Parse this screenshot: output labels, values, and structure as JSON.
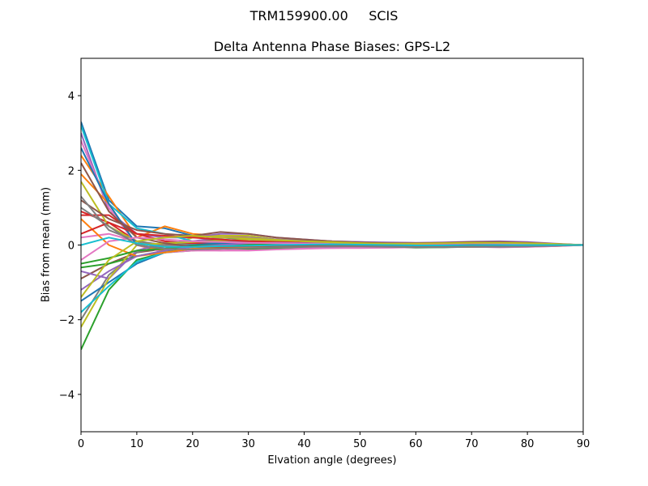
{
  "figure": {
    "suptitle": "TRM159900.00     SCIS",
    "title": "Delta Antenna Phase Biases: GPS-L2",
    "xlabel": "Elvation angle (degrees)",
    "ylabel": "Bias from mean (mm)"
  },
  "chart_data": {
    "type": "line",
    "title": "Delta Antenna Phase Biases: GPS-L2",
    "suptitle": "TRM159900.00     SCIS",
    "xlabel": "Elvation angle (degrees)",
    "ylabel": "Bias from mean (mm)",
    "xlim": [
      0,
      90
    ],
    "ylim": [
      -5,
      5
    ],
    "xticks": [
      0,
      10,
      20,
      30,
      40,
      50,
      60,
      70,
      80,
      90
    ],
    "yticks": [
      -4,
      -2,
      0,
      2,
      4
    ],
    "grid": false,
    "legend": false,
    "x": [
      0,
      5,
      10,
      15,
      20,
      25,
      30,
      35,
      40,
      45,
      50,
      55,
      60,
      65,
      70,
      75,
      80,
      85,
      90
    ],
    "color_cycle": [
      "#1f77b4",
      "#ff7f0e",
      "#2ca02c",
      "#d62728",
      "#9467bd",
      "#8c564b",
      "#e377c2",
      "#7f7f7f",
      "#bcbd22",
      "#17becf"
    ],
    "series": [
      {
        "name": "s1",
        "values": [
          3.3,
          1.2,
          0.5,
          0.45,
          0.25,
          0.2,
          0.15,
          0.1,
          0.08,
          0.05,
          0.05,
          0.03,
          0.05,
          0.06,
          0.08,
          0.08,
          0.06,
          0.03,
          0.0
        ]
      },
      {
        "name": "s2",
        "values": [
          2.4,
          1.3,
          0.2,
          0.5,
          0.3,
          0.25,
          0.2,
          0.15,
          0.1,
          0.06,
          0.04,
          0.02,
          0.03,
          0.05,
          0.06,
          0.07,
          0.05,
          0.02,
          0.0
        ]
      },
      {
        "name": "s3",
        "values": [
          -2.8,
          -1.2,
          -0.4,
          -0.2,
          -0.15,
          -0.1,
          -0.08,
          -0.05,
          -0.03,
          -0.02,
          -0.03,
          -0.04,
          -0.05,
          -0.06,
          -0.05,
          -0.04,
          -0.03,
          -0.02,
          0.0
        ]
      },
      {
        "name": "s4",
        "values": [
          0.9,
          0.6,
          0.1,
          -0.1,
          -0.05,
          0.0,
          0.02,
          0.03,
          0.05,
          0.04,
          0.02,
          0.0,
          -0.02,
          -0.03,
          -0.02,
          -0.01,
          0.0,
          0.0,
          0.0
        ]
      },
      {
        "name": "s5",
        "values": [
          3.0,
          0.9,
          0.3,
          0.2,
          0.2,
          0.3,
          0.3,
          0.2,
          0.15,
          0.1,
          0.08,
          0.05,
          0.04,
          0.05,
          0.06,
          0.05,
          0.04,
          0.02,
          0.0
        ]
      },
      {
        "name": "s6",
        "values": [
          -0.9,
          -0.5,
          -0.2,
          -0.1,
          0.1,
          0.15,
          0.1,
          0.08,
          0.05,
          0.03,
          0.02,
          0.0,
          -0.01,
          0.0,
          0.02,
          0.03,
          0.02,
          0.01,
          0.0
        ]
      },
      {
        "name": "s7",
        "values": [
          2.8,
          1.0,
          0.0,
          -0.2,
          -0.15,
          -0.15,
          -0.12,
          -0.1,
          -0.08,
          -0.08,
          -0.08,
          -0.07,
          -0.06,
          -0.05,
          -0.05,
          -0.06,
          -0.05,
          -0.03,
          0.0
        ]
      },
      {
        "name": "s8",
        "values": [
          -2.0,
          -0.8,
          -0.2,
          0.0,
          0.05,
          0.1,
          0.1,
          0.1,
          0.08,
          0.06,
          0.05,
          0.03,
          0.02,
          0.03,
          0.05,
          0.05,
          0.03,
          0.02,
          0.0
        ]
      },
      {
        "name": "s9",
        "values": [
          1.7,
          0.5,
          0.1,
          -0.05,
          0.2,
          0.25,
          0.25,
          0.15,
          0.1,
          0.06,
          0.03,
          0.02,
          0.0,
          0.01,
          0.02,
          0.02,
          0.01,
          0.0,
          0.0
        ]
      },
      {
        "name": "s10",
        "values": [
          3.2,
          1.1,
          0.45,
          0.3,
          0.1,
          0.05,
          0.05,
          0.06,
          0.05,
          0.04,
          0.03,
          0.02,
          0.02,
          0.03,
          0.04,
          0.03,
          0.02,
          0.01,
          0.0
        ]
      },
      {
        "name": "s11",
        "values": [
          -1.5,
          -1.0,
          -0.5,
          -0.2,
          -0.1,
          -0.05,
          -0.03,
          -0.02,
          -0.04,
          -0.05,
          -0.06,
          -0.05,
          -0.04,
          -0.04,
          -0.05,
          -0.05,
          -0.04,
          -0.02,
          0.0
        ]
      },
      {
        "name": "s12",
        "values": [
          1.9,
          1.1,
          0.0,
          -0.15,
          -0.1,
          -0.1,
          -0.05,
          -0.02,
          0.0,
          0.02,
          0.02,
          0.01,
          0.0,
          -0.01,
          -0.02,
          -0.02,
          -0.01,
          0.0,
          0.0
        ]
      },
      {
        "name": "s13",
        "values": [
          -0.6,
          -0.5,
          -0.3,
          -0.15,
          -0.1,
          -0.08,
          -0.1,
          -0.08,
          -0.05,
          -0.03,
          -0.04,
          -0.06,
          -0.07,
          -0.06,
          -0.04,
          -0.03,
          -0.02,
          -0.01,
          0.0
        ]
      },
      {
        "name": "s14",
        "values": [
          0.8,
          0.8,
          0.3,
          0.1,
          0.05,
          0.03,
          0.02,
          0.0,
          -0.02,
          -0.03,
          -0.04,
          -0.03,
          -0.02,
          -0.01,
          -0.01,
          0.0,
          0.0,
          0.0,
          0.0
        ]
      },
      {
        "name": "s15",
        "values": [
          -0.7,
          -0.9,
          -0.15,
          0.05,
          0.1,
          0.2,
          0.2,
          0.15,
          0.12,
          0.1,
          0.08,
          0.07,
          0.06,
          0.07,
          0.09,
          0.1,
          0.08,
          0.04,
          0.0
        ]
      },
      {
        "name": "s16",
        "values": [
          1.2,
          0.7,
          0.4,
          0.3,
          0.25,
          0.35,
          0.3,
          0.2,
          0.15,
          0.1,
          0.07,
          0.05,
          0.05,
          0.06,
          0.08,
          0.08,
          0.06,
          0.03,
          0.0
        ]
      },
      {
        "name": "s17",
        "values": [
          0.2,
          0.3,
          0.1,
          0.0,
          -0.1,
          -0.15,
          -0.15,
          -0.12,
          -0.1,
          -0.08,
          -0.07,
          -0.07,
          -0.06,
          -0.05,
          -0.05,
          -0.06,
          -0.05,
          -0.03,
          0.0
        ]
      },
      {
        "name": "s18",
        "values": [
          1.3,
          0.4,
          0.1,
          0.0,
          0.0,
          0.02,
          0.05,
          0.05,
          0.03,
          0.02,
          0.01,
          0.0,
          0.0,
          0.01,
          0.02,
          0.02,
          0.01,
          0.0,
          0.0
        ]
      },
      {
        "name": "s19",
        "values": [
          -2.2,
          -0.9,
          0.0,
          0.05,
          0.08,
          0.12,
          0.15,
          0.12,
          0.1,
          0.08,
          0.05,
          0.03,
          0.02,
          0.02,
          0.03,
          0.03,
          0.02,
          0.01,
          0.0
        ]
      },
      {
        "name": "s20",
        "values": [
          -1.8,
          -1.1,
          -0.45,
          -0.2,
          -0.1,
          -0.05,
          0.0,
          0.02,
          0.03,
          0.02,
          0.0,
          -0.02,
          -0.03,
          -0.02,
          -0.01,
          0.0,
          0.0,
          0.0,
          0.0
        ]
      },
      {
        "name": "s21",
        "values": [
          2.6,
          1.1,
          0.0,
          -0.1,
          0.0,
          0.05,
          0.08,
          0.07,
          0.05,
          0.03,
          0.02,
          0.01,
          0.0,
          0.0,
          0.01,
          0.02,
          0.01,
          0.0,
          0.0
        ]
      },
      {
        "name": "s22",
        "values": [
          0.7,
          0.0,
          -0.3,
          -0.2,
          -0.1,
          -0.08,
          -0.06,
          -0.04,
          -0.02,
          -0.01,
          -0.02,
          -0.03,
          -0.04,
          -0.05,
          -0.05,
          -0.04,
          -0.03,
          -0.02,
          0.0
        ]
      },
      {
        "name": "s23",
        "values": [
          -0.5,
          -0.35,
          -0.15,
          -0.1,
          -0.02,
          0.0,
          0.02,
          0.04,
          0.05,
          0.04,
          0.03,
          0.02,
          0.01,
          0.02,
          0.03,
          0.03,
          0.02,
          0.01,
          0.0
        ]
      },
      {
        "name": "s24",
        "values": [
          0.3,
          0.6,
          0.3,
          0.25,
          0.2,
          0.15,
          0.1,
          0.08,
          0.06,
          0.04,
          0.03,
          0.02,
          0.02,
          0.03,
          0.04,
          0.04,
          0.03,
          0.02,
          0.0
        ]
      },
      {
        "name": "s25",
        "values": [
          -1.2,
          -0.7,
          -0.3,
          -0.15,
          -0.05,
          0.0,
          0.05,
          0.06,
          0.05,
          0.04,
          0.03,
          0.02,
          0.01,
          0.0,
          0.0,
          0.01,
          0.01,
          0.0,
          0.0
        ]
      },
      {
        "name": "s26",
        "values": [
          2.2,
          0.9,
          0.2,
          0.05,
          -0.05,
          -0.05,
          -0.03,
          -0.02,
          -0.01,
          0.0,
          0.0,
          -0.01,
          -0.02,
          -0.02,
          -0.02,
          -0.01,
          0.0,
          0.0,
          0.0
        ]
      },
      {
        "name": "s27",
        "values": [
          -0.4,
          0.1,
          0.2,
          0.15,
          0.1,
          0.08,
          0.06,
          0.05,
          0.04,
          0.03,
          0.02,
          0.02,
          0.03,
          0.04,
          0.05,
          0.05,
          0.04,
          0.02,
          0.0
        ]
      },
      {
        "name": "s28",
        "values": [
          1.0,
          0.5,
          0.0,
          -0.1,
          -0.12,
          -0.1,
          -0.08,
          -0.06,
          -0.05,
          -0.04,
          -0.04,
          -0.05,
          -0.06,
          -0.06,
          -0.05,
          -0.05,
          -0.04,
          -0.02,
          0.0
        ]
      },
      {
        "name": "s29",
        "values": [
          -1.4,
          -0.4,
          0.1,
          0.2,
          0.25,
          0.2,
          0.18,
          0.14,
          0.1,
          0.07,
          0.05,
          0.04,
          0.04,
          0.05,
          0.06,
          0.06,
          0.05,
          0.03,
          0.0
        ]
      },
      {
        "name": "s30",
        "values": [
          0.0,
          0.2,
          0.05,
          -0.05,
          -0.05,
          -0.03,
          -0.02,
          0.0,
          0.01,
          0.02,
          0.01,
          0.0,
          -0.01,
          -0.01,
          0.0,
          0.0,
          0.0,
          0.0,
          0.0
        ]
      }
    ]
  }
}
